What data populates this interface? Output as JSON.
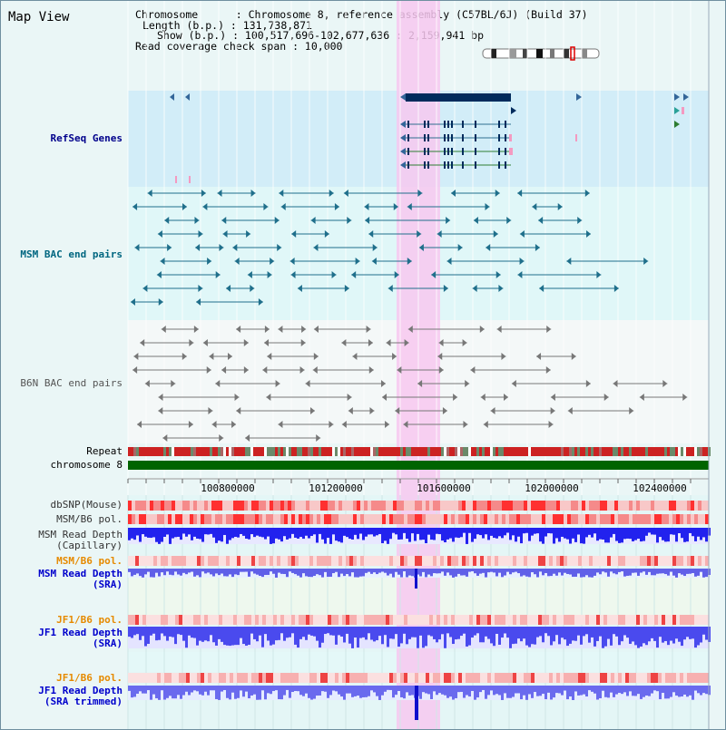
{
  "view_title": "Map View",
  "info": {
    "chromosome_line": "Chromosome      : Chromosome 8, reference assembly (C57BL/6J) (Build 37)",
    "length_line": "Length (b.p.) : 131,738,871",
    "show_line": "Show (b.p.) : 100,517,696-102,677,636 : 2,159,941 bp",
    "coverage_line": "Read coverage check span : 10,000"
  },
  "tracks": {
    "refseq": "RefSeq Genes",
    "msm_bac": "MSM BAC end pairs",
    "b6n_bac": "B6N BAC end pairs",
    "repeat": "Repeat",
    "chromosome": "chromosome 8",
    "dbsnp": "dbSNP(Mouse)",
    "msm_b6_pol_1": "MSM/B6 pol.",
    "msm_read_depth_cap_1": "MSM Read Depth",
    "msm_read_depth_cap_2": "(Capillary)",
    "msm_b6_pol_2": "MSM/B6 pol.",
    "msm_read_depth_sra_1": "MSM Read Depth",
    "msm_read_depth_sra_2": "(SRA)",
    "jf1_b6_pol_1": "JF1/B6 pol.",
    "jf1_read_depth_sra_1": "JF1 Read Depth",
    "jf1_read_depth_sra_2": "(SRA)",
    "jf1_b6_pol_2": "JF1/B6 pol.",
    "jf1_read_depth_trim_1": "JF1 Read Depth",
    "jf1_read_depth_trim_2": "(SRA trimmed)"
  },
  "ticks": [
    "100800000",
    "101200000",
    "101600000",
    "102000000",
    "102400000"
  ],
  "colors": {
    "refseq_label": "#00008b",
    "msm_label": "#006680",
    "b6n_label": "#555555",
    "pol_label": "#e68a00",
    "depth_label": "#0000cc",
    "highlight": "#f7c8f0",
    "chromosome_bar": "#006400"
  }
}
